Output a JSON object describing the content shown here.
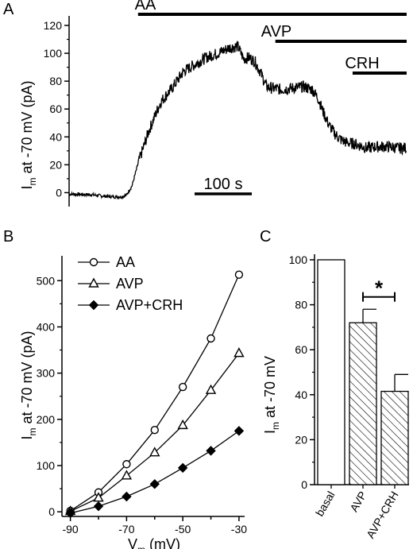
{
  "colors": {
    "ink": "#000000",
    "background": "#ffffff"
  },
  "panels": {
    "a": {
      "label": "A"
    },
    "b": {
      "label": "B"
    },
    "c": {
      "label": "C"
    }
  },
  "chart_data": [
    {
      "panel": "A",
      "type": "line",
      "xlabel": "",
      "ylabel_main": "I",
      "ylabel_sub": "m",
      "ylabel_rest": " at -70 mV (pA)",
      "ylim": [
        -10,
        120
      ],
      "yticks": [
        0,
        20,
        40,
        60,
        80,
        100,
        120
      ],
      "ytick_labels": [
        "0",
        "20",
        "40",
        "60",
        "80",
        "100",
        "120"
      ],
      "xlim": [
        0,
        590
      ],
      "x_unit": "s",
      "scale_bar": {
        "length": 100,
        "label": "100 s"
      },
      "drug_bars": [
        {
          "label": "AA",
          "start": 65,
          "end": 590
        },
        {
          "label": "AVP",
          "start": 305,
          "end": 590
        },
        {
          "label": "CRH",
          "start": 440,
          "end": 590
        }
      ],
      "x": [
        0,
        40,
        60,
        80,
        90,
        100,
        110,
        120,
        140,
        160,
        180,
        200,
        220,
        240,
        260,
        280,
        295,
        305,
        315,
        325,
        335,
        345,
        355,
        370,
        390,
        410,
        425,
        435,
        445,
        455,
        465,
        475,
        485,
        500,
        520,
        540,
        560,
        575,
        590
      ],
      "y": [
        -1,
        -1.5,
        -2.5,
        -3,
        -3,
        -2,
        5,
        20,
        45,
        65,
        75,
        87,
        92,
        97,
        100,
        104,
        105,
        96,
        97,
        94,
        86,
        76,
        75,
        74,
        75,
        76,
        74,
        68,
        57,
        48,
        42,
        38,
        36,
        35,
        32,
        33,
        33,
        32,
        32
      ]
    },
    {
      "panel": "B",
      "type": "line",
      "xlabel_main": "V",
      "xlabel_sub": "m",
      "xlabel_rest": " (mV)",
      "ylabel_main": "I",
      "ylabel_sub": "m",
      "ylabel_rest": " at -70 mV (pA)",
      "xlim": [
        -93,
        -28
      ],
      "ylim": [
        -10,
        540
      ],
      "xticks": [
        -90,
        -80,
        -70,
        -60,
        -50,
        -40,
        -30
      ],
      "xtick_labels": [
        "-90",
        "",
        "-70",
        "",
        "-50",
        "",
        "-30"
      ],
      "yticks": [
        0,
        100,
        200,
        300,
        400,
        500
      ],
      "ytick_labels": [
        "0",
        "100",
        "200",
        "300",
        "400",
        "500"
      ],
      "legend_position": "top-left",
      "x": [
        -90,
        -80,
        -70,
        -60,
        -50,
        -40,
        -30
      ],
      "series": [
        {
          "name": "AA",
          "marker": "open-circle",
          "values": [
            2,
            42,
            103,
            177,
            270,
            375,
            513
          ]
        },
        {
          "name": "AVP",
          "marker": "open-triangle",
          "values": [
            1,
            30,
            78,
            128,
            187,
            263,
            343
          ]
        },
        {
          "name": "AVP+CRH",
          "marker": "filled-diamond",
          "values": [
            -3,
            12,
            33,
            60,
            95,
            132,
            175
          ]
        }
      ]
    },
    {
      "panel": "C",
      "type": "bar",
      "ylabel_main": "I",
      "ylabel_sub": "m",
      "ylabel_rest": " at -70 mV",
      "ylim": [
        0,
        100
      ],
      "yticks": [
        0,
        20,
        40,
        60,
        80,
        100
      ],
      "ytick_labels": [
        "0",
        "20",
        "40",
        "60",
        "80",
        "100"
      ],
      "categories": [
        "basal",
        "AVP",
        "AVP+CRH"
      ],
      "values": [
        100,
        72,
        41.5
      ],
      "errors": [
        0,
        6,
        7.5
      ],
      "fills": [
        "open",
        "hatched",
        "hatched"
      ],
      "significance": {
        "between": [
          "AVP",
          "AVP+CRH"
        ],
        "label": "*"
      }
    }
  ]
}
